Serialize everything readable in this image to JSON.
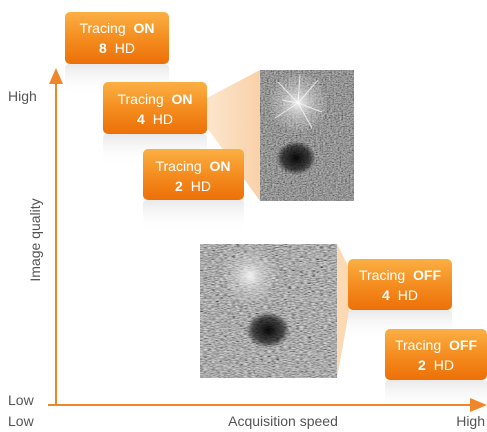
{
  "axes": {
    "y_title": "Image quality",
    "y_high": "High",
    "y_low": "Low",
    "x_title": "Acquisition speed",
    "x_low": "Low",
    "x_high": "High"
  },
  "badges": [
    {
      "word": "Tracing",
      "state": "ON",
      "count": "8",
      "unit": "HD"
    },
    {
      "word": "Tracing",
      "state": "ON",
      "count": "4",
      "unit": "HD"
    },
    {
      "word": "Tracing",
      "state": "ON",
      "count": "2",
      "unit": "HD"
    },
    {
      "word": "Tracing",
      "state": "OFF",
      "count": "4",
      "unit": "HD"
    },
    {
      "word": "Tracing",
      "state": "OFF",
      "count": "2",
      "unit": "HD"
    }
  ],
  "images": [
    {
      "name": "tracing-on-4hd-image"
    },
    {
      "name": "tracing-off-4hd-image"
    }
  ],
  "colors": {
    "badge_top": "#fbb044",
    "badge_bottom": "#ec7008",
    "axis": "#f0862a",
    "callout": "#fbd9b3",
    "text": "#555555"
  }
}
